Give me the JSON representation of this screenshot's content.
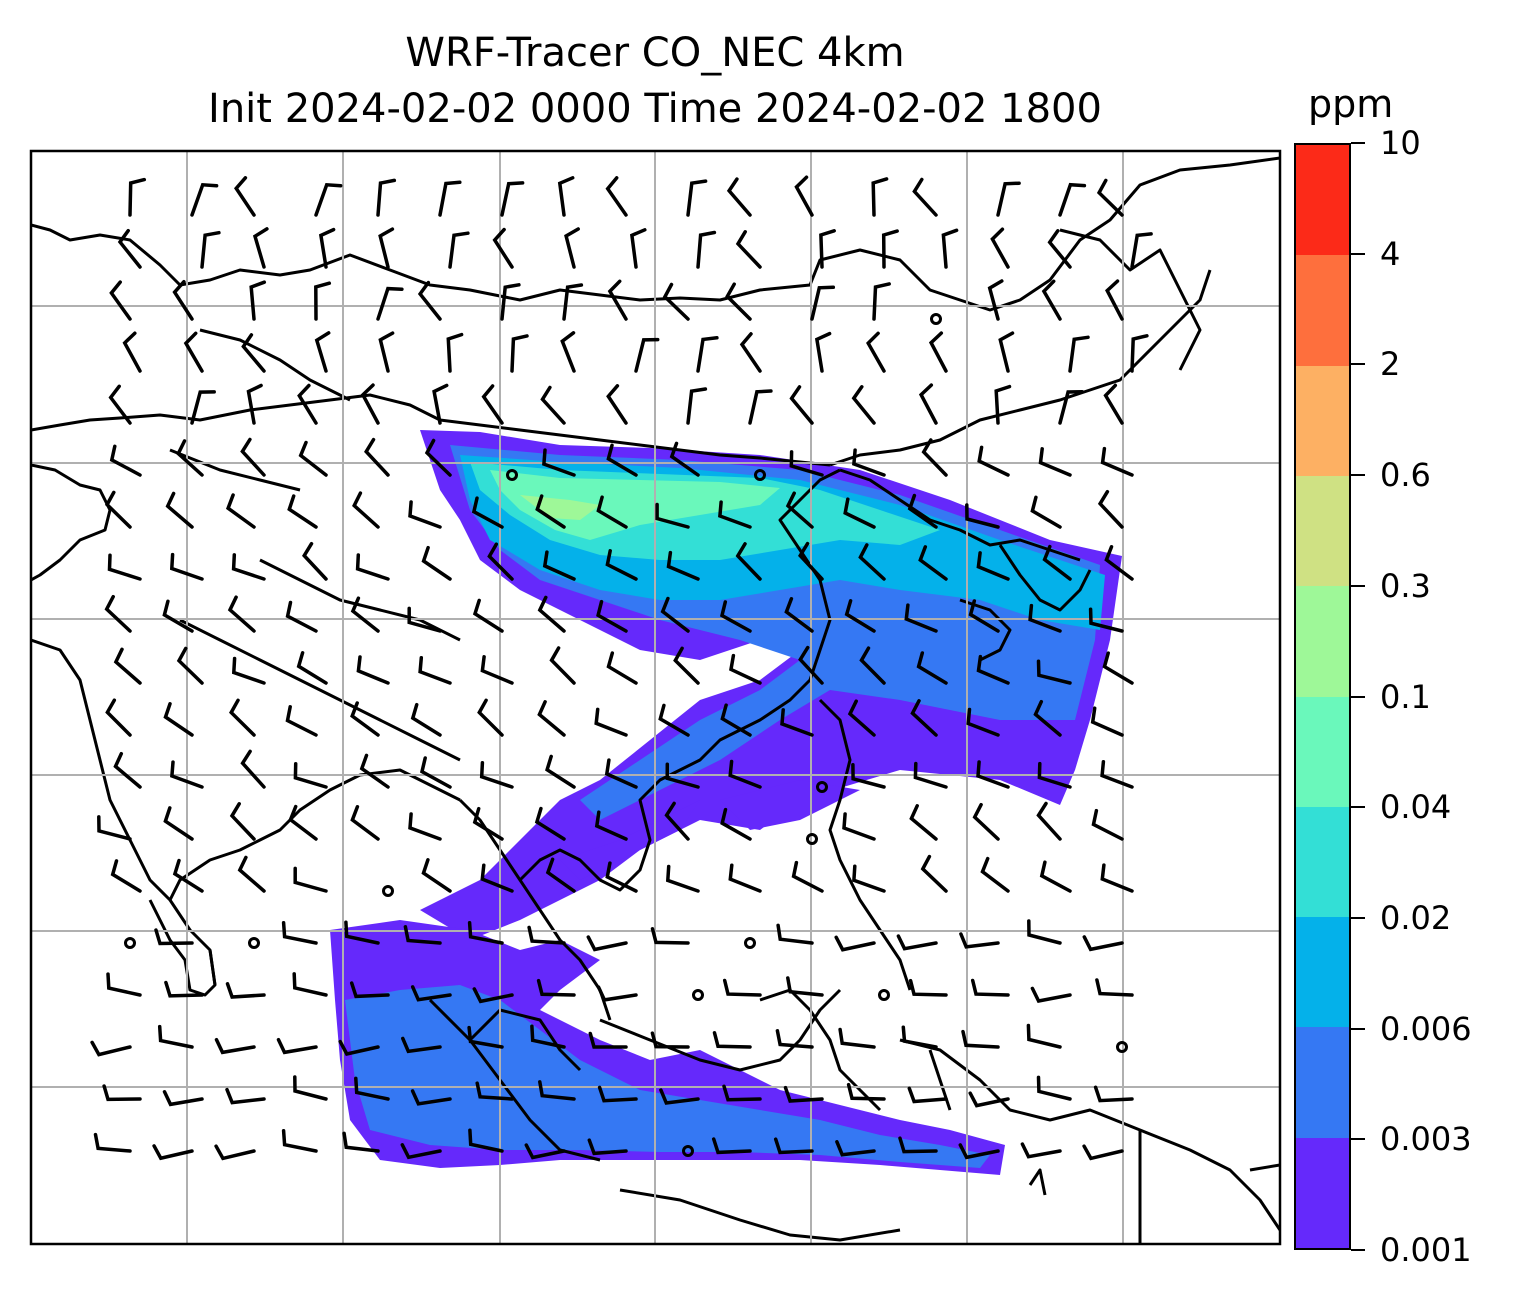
{
  "title_line1": "WRF-Tracer CO_NEC 4km",
  "title_line2": "Init 2024-02-02 0000 Time 2024-02-02 1800",
  "colorbar": {
    "unit": "ppm",
    "levels": [
      "0.001",
      "0.003",
      "0.006",
      "0.02",
      "0.04",
      "0.1",
      "0.3",
      "0.6",
      "2",
      "4",
      "10"
    ],
    "colors": [
      "#6529fb",
      "#3578f3",
      "#04b1ea",
      "#33dfd6",
      "#6af8bb",
      "#9ef898",
      "#cfe183",
      "#fdb063",
      "#fe6f3d",
      "#fc2a18"
    ]
  },
  "map": {
    "gridlines": true,
    "features": [
      "coastlines",
      "country-borders",
      "wind-barbs",
      "tracer-concentration"
    ],
    "frame_color": "#000000",
    "grid_color": "#b0b0b0"
  }
}
